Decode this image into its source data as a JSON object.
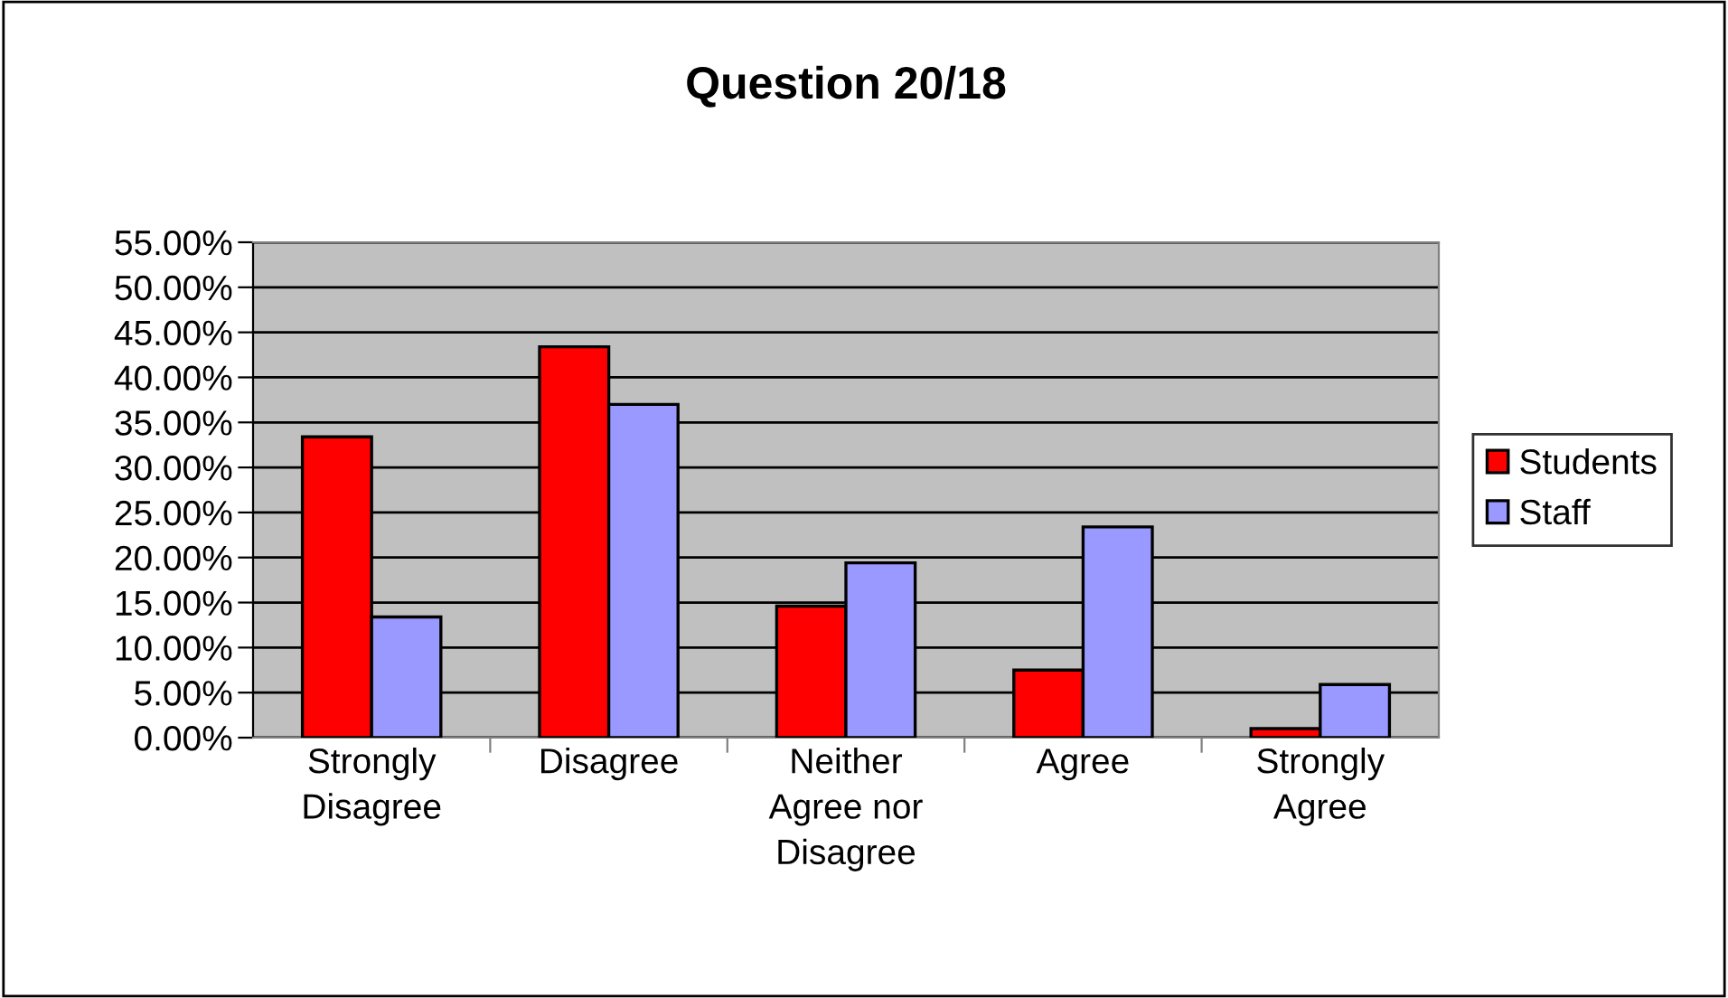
{
  "chart_data": {
    "type": "bar",
    "title": "Question 20/18",
    "categories": [
      "Strongly\nDisagree",
      "Disagree",
      "Neither\nAgree nor\nDisagree",
      "Agree",
      "Strongly\nAgree"
    ],
    "series": [
      {
        "name": "Students",
        "color": "#ff0000",
        "values": [
          0.334,
          0.434,
          0.146,
          0.075,
          0.01
        ]
      },
      {
        "name": "Staff",
        "color": "#9999ff",
        "values": [
          0.134,
          0.37,
          0.194,
          0.234,
          0.059
        ]
      }
    ],
    "ylim": [
      0,
      0.55
    ],
    "yticks": [
      {
        "value": 0,
        "label": "0.00%"
      },
      {
        "value": 0.05,
        "label": "5.00%"
      },
      {
        "value": 0.1,
        "label": "10.00%"
      },
      {
        "value": 0.15,
        "label": "15.00%"
      },
      {
        "value": 0.2,
        "label": "20.00%"
      },
      {
        "value": 0.25,
        "label": "25.00%"
      },
      {
        "value": 0.3,
        "label": "30.00%"
      },
      {
        "value": 0.35,
        "label": "35.00%"
      },
      {
        "value": 0.4,
        "label": "40.00%"
      },
      {
        "value": 0.45,
        "label": "45.00%"
      },
      {
        "value": 0.5,
        "label": "50.00%"
      },
      {
        "value": 0.55,
        "label": "55.00%"
      }
    ],
    "grid": "y",
    "legend": "right"
  }
}
